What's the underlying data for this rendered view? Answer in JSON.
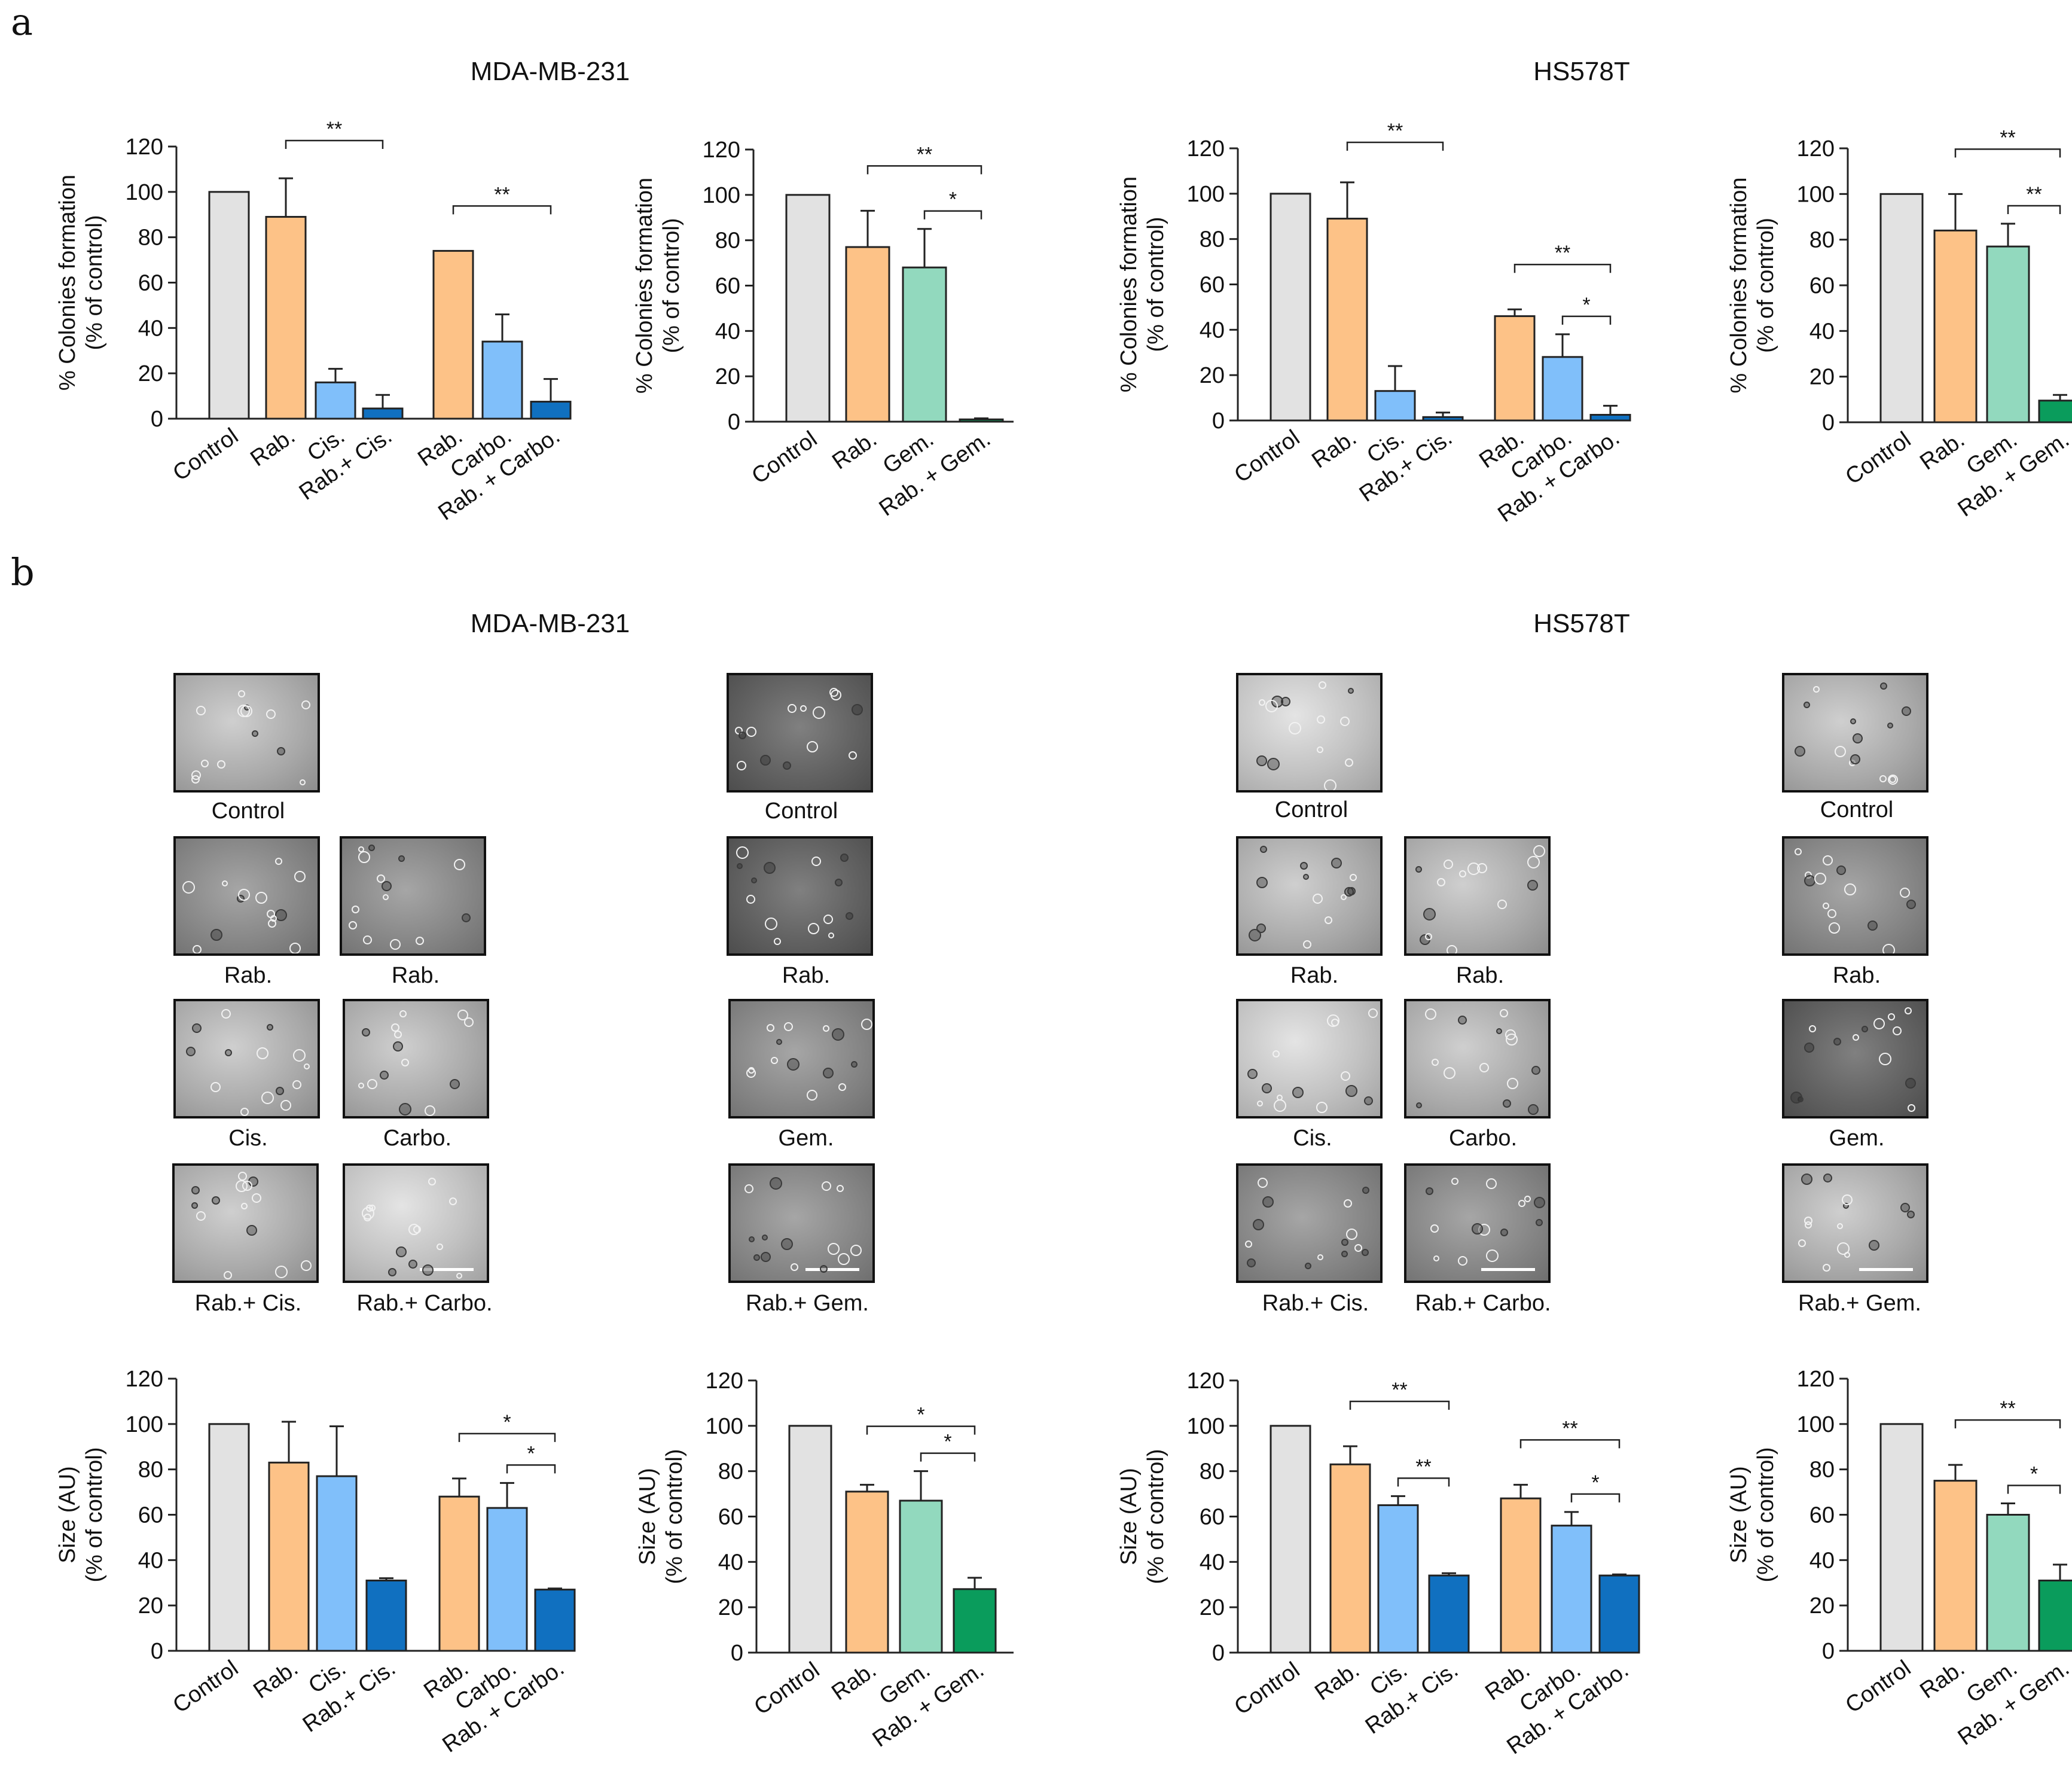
{
  "panels": {
    "a": "a",
    "b": "b"
  },
  "cell_lines": {
    "left": "MDA-MB-231",
    "right": "HS578T"
  },
  "colors": {
    "control": "#e2e2e2",
    "rab": "#fdc287",
    "cis_carbo": "#80bffa",
    "combo_platinum": "#1070c0",
    "gem": "#92d9be",
    "combo_gem": "#0a9c5c"
  },
  "chart_data": [
    {
      "id": "a1",
      "type": "bar",
      "ylabel_line1": "% Colonies formation",
      "ylabel_line2": "(% of control)",
      "ylim": [
        0,
        120
      ],
      "yticks": [
        0,
        20,
        40,
        60,
        80,
        100,
        120
      ],
      "categories": [
        "Control",
        "Rab.",
        "Cis.",
        "Rab.+ Cis.",
        "Rab.",
        "Carbo.",
        "Rab. + Carbo."
      ],
      "values": [
        100,
        89,
        16,
        4.5,
        74,
        34,
        7.5
      ],
      "errors": [
        0,
        17,
        6,
        6,
        0,
        12,
        10
      ],
      "colorKeys": [
        "control",
        "rab",
        "cis_carbo",
        "combo_platinum",
        "rab",
        "cis_carbo",
        "combo_platinum"
      ],
      "significance": [
        {
          "from": 1,
          "to": 3,
          "label": "**"
        },
        {
          "from": 4,
          "to": 6,
          "label": "**"
        }
      ]
    },
    {
      "id": "a2",
      "type": "bar",
      "ylabel_line1": "% Colonies formation",
      "ylabel_line2": "(% of control)",
      "ylim": [
        0,
        120
      ],
      "yticks": [
        0,
        20,
        40,
        60,
        80,
        100,
        120
      ],
      "categories": [
        "Control",
        "Rab.",
        "Gem.",
        "Rab. + Gem."
      ],
      "values": [
        100,
        77,
        68,
        1
      ],
      "errors": [
        0,
        16,
        17,
        0.5
      ],
      "colorKeys": [
        "control",
        "rab",
        "gem",
        "combo_gem"
      ],
      "significance": [
        {
          "from": 1,
          "to": 3,
          "label": "**"
        },
        {
          "from": 2,
          "to": 3,
          "label": "*"
        }
      ]
    },
    {
      "id": "a3",
      "type": "bar",
      "ylabel_line1": "% Colonies formation",
      "ylabel_line2": "(% of control)",
      "ylim": [
        0,
        120
      ],
      "yticks": [
        0,
        20,
        40,
        60,
        80,
        100,
        120
      ],
      "categories": [
        "Control",
        "Rab.",
        "Cis.",
        "Rab.+ Cis.",
        "Rab.",
        "Carbo.",
        "Rab. + Carbo."
      ],
      "values": [
        100,
        89,
        13,
        1.5,
        46,
        28,
        2.5
      ],
      "errors": [
        0,
        16,
        11,
        2,
        3,
        10,
        4
      ],
      "colorKeys": [
        "control",
        "rab",
        "cis_carbo",
        "combo_platinum",
        "rab",
        "cis_carbo",
        "combo_platinum"
      ],
      "significance": [
        {
          "from": 1,
          "to": 3,
          "label": "**"
        },
        {
          "from": 4,
          "to": 6,
          "label": "**"
        },
        {
          "from": 5,
          "to": 6,
          "label": "*"
        }
      ]
    },
    {
      "id": "a4",
      "type": "bar",
      "ylabel_line1": "% Colonies formation",
      "ylabel_line2": "(% of control)",
      "ylim": [
        0,
        120
      ],
      "yticks": [
        0,
        20,
        40,
        60,
        80,
        100,
        120
      ],
      "categories": [
        "Control",
        "Rab.",
        "Gem.",
        "Rab. + Gem."
      ],
      "values": [
        100,
        84,
        77,
        9.5
      ],
      "errors": [
        0,
        16,
        10,
        2.5
      ],
      "colorKeys": [
        "control",
        "rab",
        "gem",
        "combo_gem"
      ],
      "significance": [
        {
          "from": 1,
          "to": 3,
          "label": "**"
        },
        {
          "from": 2,
          "to": 3,
          "label": "**"
        }
      ]
    },
    {
      "id": "b1",
      "type": "bar",
      "ylabel_line1": "Size (AU)",
      "ylabel_line2": "(% of control)",
      "ylim": [
        0,
        120
      ],
      "yticks": [
        0,
        20,
        40,
        60,
        80,
        100,
        120
      ],
      "categories": [
        "Control",
        "Rab.",
        "Cis.",
        "Rab.+ Cis.",
        "Rab.",
        "Carbo.",
        "Rab. + Carbo."
      ],
      "values": [
        100,
        83,
        77,
        31,
        68,
        63,
        27
      ],
      "errors": [
        0,
        18,
        22,
        1,
        8,
        11,
        0.5
      ],
      "colorKeys": [
        "control",
        "rab",
        "cis_carbo",
        "combo_platinum",
        "rab",
        "cis_carbo",
        "combo_platinum"
      ],
      "significance": [
        {
          "from": 4,
          "to": 6,
          "label": "*"
        },
        {
          "from": 5,
          "to": 6,
          "label": "*"
        }
      ]
    },
    {
      "id": "b2",
      "type": "bar",
      "ylabel_line1": "Size (AU)",
      "ylabel_line2": "(% of control)",
      "ylim": [
        0,
        120
      ],
      "yticks": [
        0,
        20,
        40,
        60,
        80,
        100,
        120
      ],
      "categories": [
        "Control",
        "Rab.",
        "Gem.",
        "Rab. + Gem."
      ],
      "values": [
        100,
        71,
        67,
        28
      ],
      "errors": [
        0,
        3,
        13,
        5
      ],
      "colorKeys": [
        "control",
        "rab",
        "gem",
        "combo_gem"
      ],
      "significance": [
        {
          "from": 1,
          "to": 3,
          "label": "*"
        },
        {
          "from": 2,
          "to": 3,
          "label": "*"
        }
      ]
    },
    {
      "id": "b3",
      "type": "bar",
      "ylabel_line1": "Size (AU)",
      "ylabel_line2": "(% of control)",
      "ylim": [
        0,
        120
      ],
      "yticks": [
        0,
        20,
        40,
        60,
        80,
        100,
        120
      ],
      "categories": [
        "Control",
        "Rab.",
        "Cis.",
        "Rab.+ Cis.",
        "Rab.",
        "Carbo.",
        "Rab. + Carbo."
      ],
      "values": [
        100,
        83,
        65,
        34,
        68,
        56,
        34
      ],
      "errors": [
        0,
        8,
        4,
        1,
        6,
        6,
        0.5
      ],
      "colorKeys": [
        "control",
        "rab",
        "cis_carbo",
        "combo_platinum",
        "rab",
        "cis_carbo",
        "combo_platinum"
      ],
      "significance": [
        {
          "from": 1,
          "to": 3,
          "label": "**"
        },
        {
          "from": 2,
          "to": 3,
          "label": "**"
        },
        {
          "from": 4,
          "to": 6,
          "label": "**"
        },
        {
          "from": 5,
          "to": 6,
          "label": "*"
        }
      ]
    },
    {
      "id": "b4",
      "type": "bar",
      "ylabel_line1": "Size (AU)",
      "ylabel_line2": "(% of control)",
      "ylim": [
        0,
        120
      ],
      "yticks": [
        0,
        20,
        40,
        60,
        80,
        100,
        120
      ],
      "categories": [
        "Control",
        "Rab.",
        "Gem.",
        "Rab. + Gem."
      ],
      "values": [
        100,
        75,
        60,
        31
      ],
      "errors": [
        0,
        7,
        5,
        7
      ],
      "colorKeys": [
        "control",
        "rab",
        "gem",
        "combo_gem"
      ],
      "significance": [
        {
          "from": 1,
          "to": 3,
          "label": "**"
        },
        {
          "from": 2,
          "to": 3,
          "label": "*"
        }
      ]
    }
  ],
  "micrographs": {
    "mda_cis_carbo": {
      "control": "Control",
      "rab1": "Rab.",
      "rab2": "Rab.",
      "cis": "Cis.",
      "carbo": "Carbo.",
      "rab_cis": "Rab.+ Cis.",
      "rab_carbo": "Rab.+ Carbo."
    },
    "mda_gem": {
      "control": "Control",
      "rab": "Rab.",
      "gem": "Gem.",
      "rab_gem": "Rab.+ Gem."
    },
    "hs_cis_carbo": {
      "control": "Control",
      "rab1": "Rab.",
      "rab2": "Rab.",
      "cis": "Cis.",
      "carbo": "Carbo.",
      "rab_cis": "Rab.+ Cis.",
      "rab_carbo": "Rab.+ Carbo."
    },
    "hs_gem": {
      "control": "Control",
      "rab": "Rab.",
      "gem": "Gem.",
      "rab_gem": "Rab.+ Gem."
    }
  }
}
